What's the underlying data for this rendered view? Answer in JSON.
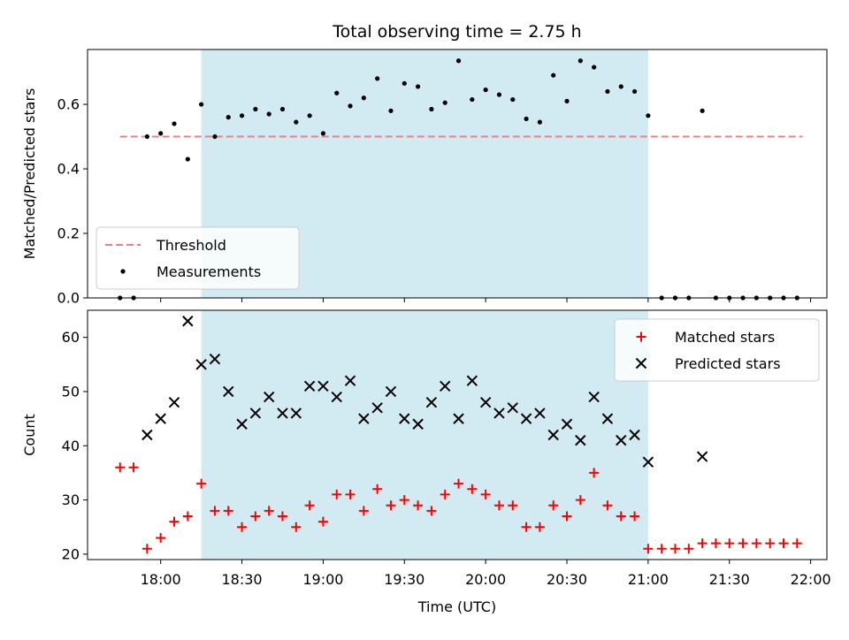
{
  "chart_data": {
    "title": "Total observing time = 2.75 h",
    "xlabel": "Time (UTC)",
    "x_ticks": [
      "18:00",
      "18:30",
      "19:00",
      "19:30",
      "20:00",
      "20:30",
      "21:00",
      "21:30",
      "22:00"
    ],
    "x_range": [
      "17:33",
      "22:06"
    ],
    "shaded_interval": [
      "18:15",
      "21:00"
    ],
    "shade_color": "#add8e6",
    "panels": [
      {
        "type": "scatter",
        "ylabel": "Matched/Predicted stars",
        "ylim": [
          0,
          0.77
        ],
        "y_ticks": [
          "0.0",
          "0.2",
          "0.4",
          "0.6"
        ],
        "legend_position": "lower-left",
        "threshold": {
          "name": "Threshold",
          "value": 0.5,
          "x_start": "17:45",
          "x_end": "21:57",
          "color": "#f08080",
          "style": "dashed"
        },
        "series": [
          {
            "name": "Measurements",
            "marker": "dot",
            "color": "#000000",
            "x": [
              "17:45",
              "17:50",
              "17:55",
              "18:00",
              "18:05",
              "18:10",
              "18:15",
              "18:20",
              "18:25",
              "18:30",
              "18:35",
              "18:40",
              "18:45",
              "18:50",
              "18:55",
              "19:00",
              "19:05",
              "19:10",
              "19:15",
              "19:20",
              "19:25",
              "19:30",
              "19:35",
              "19:40",
              "19:45",
              "19:50",
              "19:55",
              "20:00",
              "20:05",
              "20:10",
              "20:15",
              "20:20",
              "20:25",
              "20:30",
              "20:35",
              "20:40",
              "20:45",
              "20:50",
              "20:55",
              "21:00",
              "21:05",
              "21:10",
              "21:15",
              "21:20",
              "21:25",
              "21:30",
              "21:35",
              "21:40",
              "21:45",
              "21:50",
              "21:55"
            ],
            "y": [
              0.0,
              0.0,
              0.5,
              0.51,
              0.54,
              0.43,
              0.6,
              0.5,
              0.56,
              0.565,
              0.585,
              0.57,
              0.585,
              0.545,
              0.565,
              0.51,
              0.635,
              0.595,
              0.62,
              0.68,
              0.58,
              0.665,
              0.655,
              0.585,
              0.605,
              0.735,
              0.615,
              0.645,
              0.63,
              0.615,
              0.555,
              0.545,
              0.69,
              0.61,
              0.735,
              0.715,
              0.64,
              0.655,
              0.64,
              0.565,
              0.0,
              0.0,
              0.0,
              0.58,
              0.0,
              0.0,
              0.0,
              0.0,
              0.0,
              0.0,
              0.0
            ]
          }
        ]
      },
      {
        "type": "scatter",
        "ylabel": "Count",
        "ylim": [
          19,
          65
        ],
        "y_ticks": [
          "20",
          "30",
          "40",
          "50",
          "60"
        ],
        "legend_position": "upper-right",
        "series": [
          {
            "name": "Matched stars",
            "marker": "plus",
            "color": "#ff0000",
            "x": [
              "17:45",
              "17:50",
              "17:55",
              "18:00",
              "18:05",
              "18:10",
              "18:15",
              "18:20",
              "18:25",
              "18:30",
              "18:35",
              "18:40",
              "18:45",
              "18:50",
              "18:55",
              "19:00",
              "19:05",
              "19:10",
              "19:15",
              "19:20",
              "19:25",
              "19:30",
              "19:35",
              "19:40",
              "19:45",
              "19:50",
              "19:55",
              "20:00",
              "20:05",
              "20:10",
              "20:15",
              "20:20",
              "20:25",
              "20:30",
              "20:35",
              "20:40",
              "20:45",
              "20:50",
              "20:55",
              "21:00",
              "21:05",
              "21:10",
              "21:15",
              "21:20",
              "21:25",
              "21:30",
              "21:35",
              "21:40",
              "21:45",
              "21:50",
              "21:55"
            ],
            "y": [
              36,
              36,
              21,
              23,
              26,
              27,
              33,
              28,
              28,
              25,
              27,
              28,
              27,
              25,
              29,
              26,
              31,
              31,
              28,
              32,
              29,
              30,
              29,
              28,
              31,
              33,
              32,
              31,
              29,
              29,
              25,
              25,
              29,
              27,
              30,
              35,
              29,
              27,
              27,
              21,
              21,
              21,
              21,
              22,
              22,
              22,
              22,
              22,
              22,
              22,
              22
            ]
          },
          {
            "name": "Predicted stars",
            "marker": "x",
            "color": "#000000",
            "x": [
              "17:55",
              "18:00",
              "18:05",
              "18:10",
              "18:15",
              "18:20",
              "18:25",
              "18:30",
              "18:35",
              "18:40",
              "18:45",
              "18:50",
              "18:55",
              "19:00",
              "19:05",
              "19:10",
              "19:15",
              "19:20",
              "19:25",
              "19:30",
              "19:35",
              "19:40",
              "19:45",
              "19:50",
              "19:55",
              "20:00",
              "20:05",
              "20:10",
              "20:15",
              "20:20",
              "20:25",
              "20:30",
              "20:35",
              "20:40",
              "20:45",
              "20:50",
              "20:55",
              "21:00",
              "21:20"
            ],
            "y": [
              42,
              45,
              48,
              63,
              55,
              56,
              50,
              44,
              46,
              49,
              46,
              46,
              51,
              51,
              49,
              52,
              45,
              47,
              50,
              45,
              44,
              48,
              51,
              45,
              52,
              48,
              46,
              47,
              45,
              46,
              42,
              44,
              41,
              49,
              45,
              41,
              42,
              37,
              38
            ]
          }
        ]
      }
    ]
  }
}
